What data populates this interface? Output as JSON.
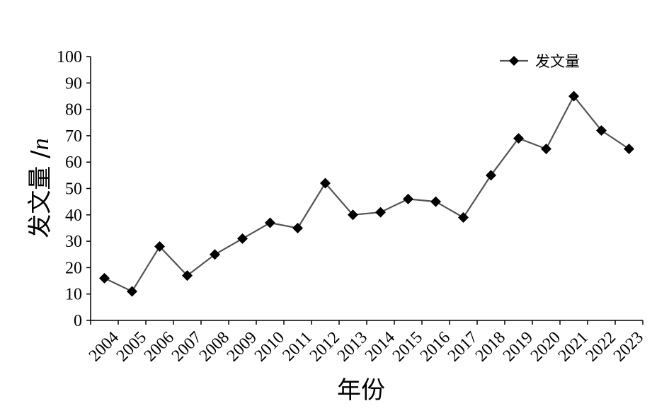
{
  "chart_data": {
    "type": "line",
    "title": "",
    "xlabel": "年份",
    "ylabel": "发文量 /n",
    "ylim": [
      0,
      100
    ],
    "yticks": [
      "0",
      "10",
      "20",
      "30",
      "40",
      "50",
      "60",
      "70",
      "80",
      "90",
      "100"
    ],
    "categories": [
      "2004",
      "2005",
      "2006",
      "2007",
      "2008",
      "2009",
      "2010",
      "2011",
      "2012",
      "2013",
      "2014",
      "2015",
      "2016",
      "2017",
      "2018",
      "2019",
      "2020",
      "2021",
      "2022",
      "2023"
    ],
    "series": [
      {
        "name": "发文量",
        "values": [
          16,
          11,
          28,
          17,
          25,
          31,
          37,
          35,
          52,
          40,
          41,
          46,
          45,
          39,
          55,
          69,
          65,
          85,
          72,
          65
        ]
      }
    ],
    "grid": false,
    "legend_position": "top-right",
    "colors": {
      "line": "#555555",
      "marker": "#000000",
      "axis": "#000000"
    }
  }
}
